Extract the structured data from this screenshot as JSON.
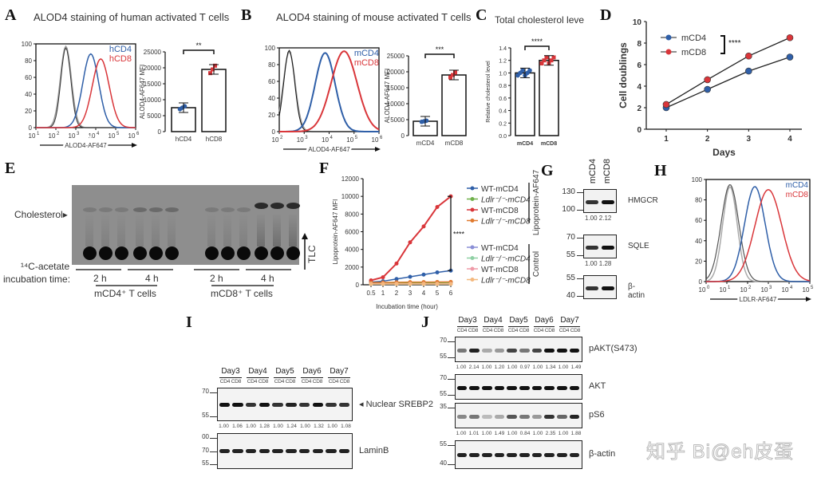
{
  "panels": {
    "A": {
      "label": "A",
      "title": "ALOD4 staining of human activated T cells",
      "hist": {
        "yticks": [
          "0",
          "20",
          "40",
          "60",
          "80",
          "100"
        ],
        "xticks": [
          "1",
          "2",
          "3",
          "4",
          "5",
          "6"
        ],
        "xbase": "10",
        "xlabel": "ALOD4-AF647",
        "legend": [
          "hCD4",
          "hCD8"
        ]
      },
      "bar": {
        "ylabel": "ALOD4-AF647 MFI",
        "yticks": [
          "0",
          "5000",
          "10000",
          "15000",
          "20000",
          "25000"
        ],
        "categories": [
          "hCD4",
          "hCD8"
        ],
        "values": [
          7500,
          19500
        ],
        "sig": "**"
      }
    },
    "B": {
      "label": "B",
      "title": "ALOD4 staining of mouse activated T cells",
      "hist": {
        "yticks": [
          "0",
          "20",
          "40",
          "60",
          "80",
          "100"
        ],
        "xticks": [
          "2",
          "3",
          "4",
          "5",
          "6"
        ],
        "xbase": "10",
        "xlabel": "ALOD4-AF647",
        "legend": [
          "mCD4",
          "mCD8"
        ]
      },
      "bar": {
        "ylabel": "ALOD4-AF647 MFI",
        "yticks": [
          "0",
          "5000",
          "10000",
          "15000",
          "20000",
          "25000"
        ],
        "categories": [
          "mCD4",
          "mCD8"
        ],
        "values": [
          4500,
          19000
        ],
        "sig": "***"
      }
    },
    "C": {
      "label": "C",
      "title": "Total cholesterol leve",
      "ylabel": "Relative cholesterol level",
      "yticks": [
        "0.0",
        "0.2",
        "0.4",
        "0.6",
        "0.8",
        "1.0",
        "1.2",
        "1.4"
      ],
      "categories": [
        "mCD4",
        "mCD8"
      ],
      "values": [
        1.0,
        1.2
      ],
      "sig": "****"
    },
    "D": {
      "label": "D"
    },
    "E": {
      "label": "E",
      "cholesterol": "Cholesterol",
      "acetate_line1": "¹⁴C-acetate",
      "acetate_line2": "incubation time:",
      "t2": "2 h",
      "t4": "4 h",
      "group1": "mCD4⁺ T cells",
      "group2": "mCD8⁺ T cells",
      "tlc": "TLC"
    },
    "F": {
      "label": "F"
    },
    "G": {
      "label": "G",
      "lanes": [
        "mCD4",
        "mCD8"
      ],
      "blots": [
        {
          "name": "HMGCR",
          "markers": [
            "130",
            "100"
          ],
          "quant": "1.00 2.12"
        },
        {
          "name": "SQLE",
          "markers": [
            "70",
            "55"
          ],
          "quant": "1.00 1.28"
        },
        {
          "name": "β-actin",
          "markers": [
            "55",
            "40"
          ],
          "quant": ""
        }
      ]
    },
    "H": {
      "label": "H",
      "yticks": [
        "0",
        "20",
        "40",
        "60",
        "80",
        "100"
      ],
      "xticks": [
        "0",
        "1",
        "2",
        "3",
        "4",
        "5"
      ],
      "xbase": "10",
      "xlabel": "LDLR-AF647",
      "legend": [
        "mCD4",
        "mCD8"
      ]
    },
    "I": {
      "label": "I",
      "days": [
        "Day3",
        "Day4",
        "Day5",
        "Day6",
        "Day7"
      ],
      "sub": "CD4 CD8",
      "blots": [
        {
          "name": "◂ Nuclear SREBP2",
          "markers": [
            "70",
            "55"
          ],
          "quant": [
            "1.00",
            "1.06",
            "1.00",
            "1.28",
            "1.00",
            "1.24",
            "1.00",
            "1.32",
            "1.00",
            "1.08"
          ]
        },
        {
          "name": "LaminB",
          "markers": [
            "00",
            "70",
            "55"
          ],
          "quant": []
        }
      ]
    },
    "J": {
      "label": "J",
      "days": [
        "Day3",
        "Day4",
        "Day5",
        "Day6",
        "Day7"
      ],
      "sub": "CD4 CD8",
      "blots": [
        {
          "name": "pAKT(S473)",
          "markers": [
            "70",
            "55"
          ],
          "quant": [
            "1.00",
            "2.14",
            "1.00",
            "1.20",
            "1.00",
            "0.97",
            "1.00",
            "1.34",
            "1.00",
            "1.49"
          ]
        },
        {
          "name": "AKT",
          "markers": [
            "70",
            "55"
          ],
          "quant": []
        },
        {
          "name": "pS6",
          "markers": [
            "35"
          ],
          "quant": [
            "1.00",
            "1.01",
            "1.00",
            "1.49",
            "1.00",
            "0.84",
            "1.00",
            "2.35",
            "1.00",
            "1.88"
          ]
        },
        {
          "name": "β-actin",
          "markers": [
            "55",
            "40"
          ],
          "quant": []
        }
      ]
    }
  },
  "watermark": "知乎 Bi@eh皮蛋",
  "colors": {
    "cd4": "#2f5fa8",
    "cd8": "#d9363a",
    "gray": "#9a9a9a",
    "dark": "#222222"
  },
  "chart_data": [
    {
      "type": "line",
      "title": "",
      "xlabel": "Days",
      "ylabel": "Cell doublings",
      "x": [
        1,
        2,
        3,
        4
      ],
      "xticks": [
        "1",
        "2",
        "3",
        "4"
      ],
      "yticks": [
        "0",
        "2",
        "4",
        "6",
        "8",
        "10"
      ],
      "ylim": [
        0,
        10
      ],
      "series": [
        {
          "name": "mCD4",
          "values": [
            2.0,
            3.7,
            5.4,
            6.7
          ]
        },
        {
          "name": "mCD8",
          "values": [
            2.3,
            4.6,
            6.8,
            8.5
          ]
        }
      ],
      "annotation": "****",
      "legend": "top-left"
    },
    {
      "type": "line",
      "title": "",
      "xlabel": "Incubation time (hour)",
      "ylabel": "Lipoprotein-AF647 MFI",
      "x": [
        0.5,
        1,
        2,
        3,
        4,
        5,
        6
      ],
      "xticks": [
        "0.5",
        "1",
        "2",
        "3",
        "4",
        "5",
        "6"
      ],
      "yticks": [
        "0",
        "2000",
        "4000",
        "6000",
        "8000",
        "10000",
        "12000"
      ],
      "ylim": [
        0,
        12000
      ],
      "series": [
        {
          "name": "WT-mCD4",
          "group": "Lipoprotein-AF647",
          "values": [
            300,
            400,
            650,
            900,
            1150,
            1400,
            1600
          ]
        },
        {
          "name": "Ldlr⁻/⁻-mCD4",
          "group": "Lipoprotein-AF647",
          "values": [
            200,
            200,
            220,
            230,
            240,
            250,
            260
          ]
        },
        {
          "name": "WT-mCD8",
          "group": "Lipoprotein-AF647",
          "values": [
            500,
            850,
            2400,
            4800,
            6600,
            8800,
            10000
          ]
        },
        {
          "name": "Ldlr⁻/⁻-mCD8",
          "group": "Lipoprotein-AF647",
          "values": [
            250,
            260,
            280,
            300,
            310,
            320,
            330
          ]
        },
        {
          "name": "WT-mCD4",
          "group": "Control",
          "values": [
            100,
            100,
            100,
            100,
            100,
            100,
            100
          ]
        },
        {
          "name": "Ldlr⁻/⁻-mCD4",
          "group": "Control",
          "values": [
            90,
            90,
            90,
            90,
            90,
            90,
            90
          ]
        },
        {
          "name": "WT-mCD8",
          "group": "Control",
          "values": [
            110,
            110,
            110,
            110,
            110,
            110,
            110
          ]
        },
        {
          "name": "Ldlr⁻/⁻-mCD8",
          "group": "Control",
          "values": [
            95,
            95,
            95,
            95,
            95,
            95,
            95
          ]
        }
      ],
      "group_labels": [
        "Lipoprotein-AF647",
        "Control"
      ],
      "annotation": "****",
      "legend": "right"
    }
  ]
}
